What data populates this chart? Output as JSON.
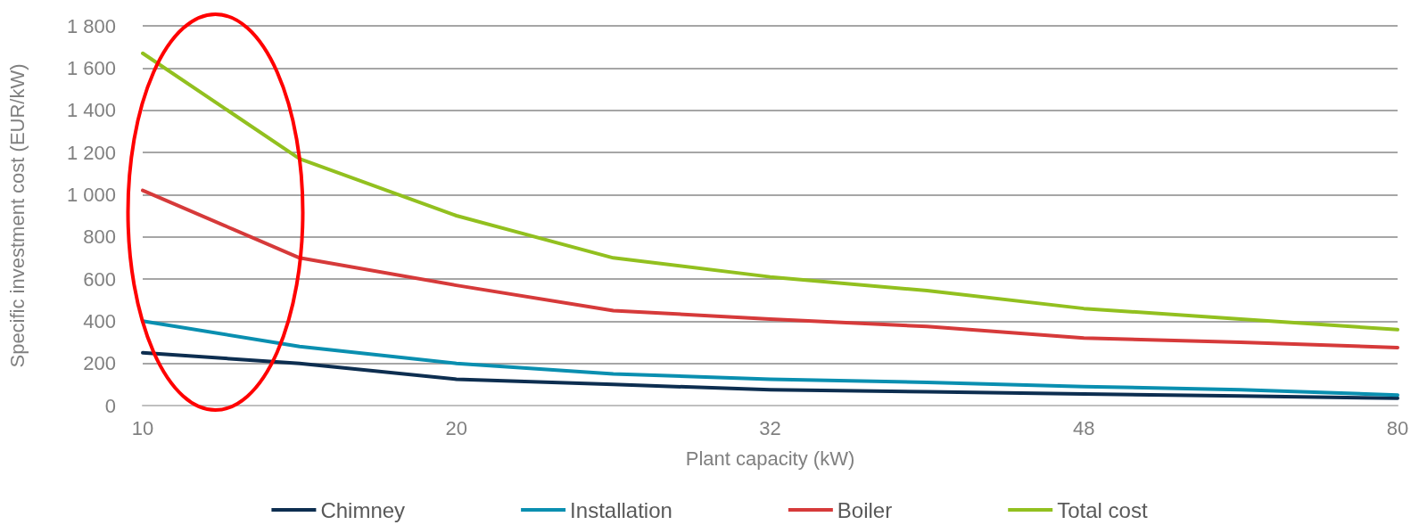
{
  "chart_data": {
    "type": "line",
    "xlabel": "Plant capacity (kW)",
    "ylabel": "Specific investment cost (EUR/kW)",
    "categories": [
      "10",
      null,
      "20",
      null,
      "32",
      null,
      "48",
      null,
      "80"
    ],
    "series": [
      {
        "name": "Chimney",
        "color": "#0d2e50",
        "values": [
          250,
          200,
          125,
          100,
          75,
          65,
          55,
          45,
          35
        ]
      },
      {
        "name": "Installation",
        "color": "#0a8fb0",
        "values": [
          400,
          280,
          200,
          150,
          125,
          110,
          90,
          75,
          50
        ]
      },
      {
        "name": "Boiler",
        "color": "#d63a3a",
        "values": [
          1020,
          700,
          570,
          450,
          410,
          375,
          320,
          300,
          275
        ]
      },
      {
        "name": "Total cost",
        "color": "#92c01f",
        "values": [
          1670,
          1170,
          900,
          700,
          610,
          545,
          460,
          410,
          360
        ]
      }
    ],
    "ylim": [
      0,
      1800
    ],
    "yticks": [
      0,
      200,
      400,
      600,
      800,
      {
        "value": 1000,
        "label": "1 000"
      },
      {
        "value": 1200,
        "label": "1 200"
      },
      {
        "value": 1400,
        "label": "1 400"
      },
      {
        "value": 1600,
        "label": "1 600"
      },
      {
        "value": 1800,
        "label": "1 800"
      }
    ],
    "grid": "y",
    "legend": "bottom",
    "marker": "none",
    "line_style": "solid"
  }
}
